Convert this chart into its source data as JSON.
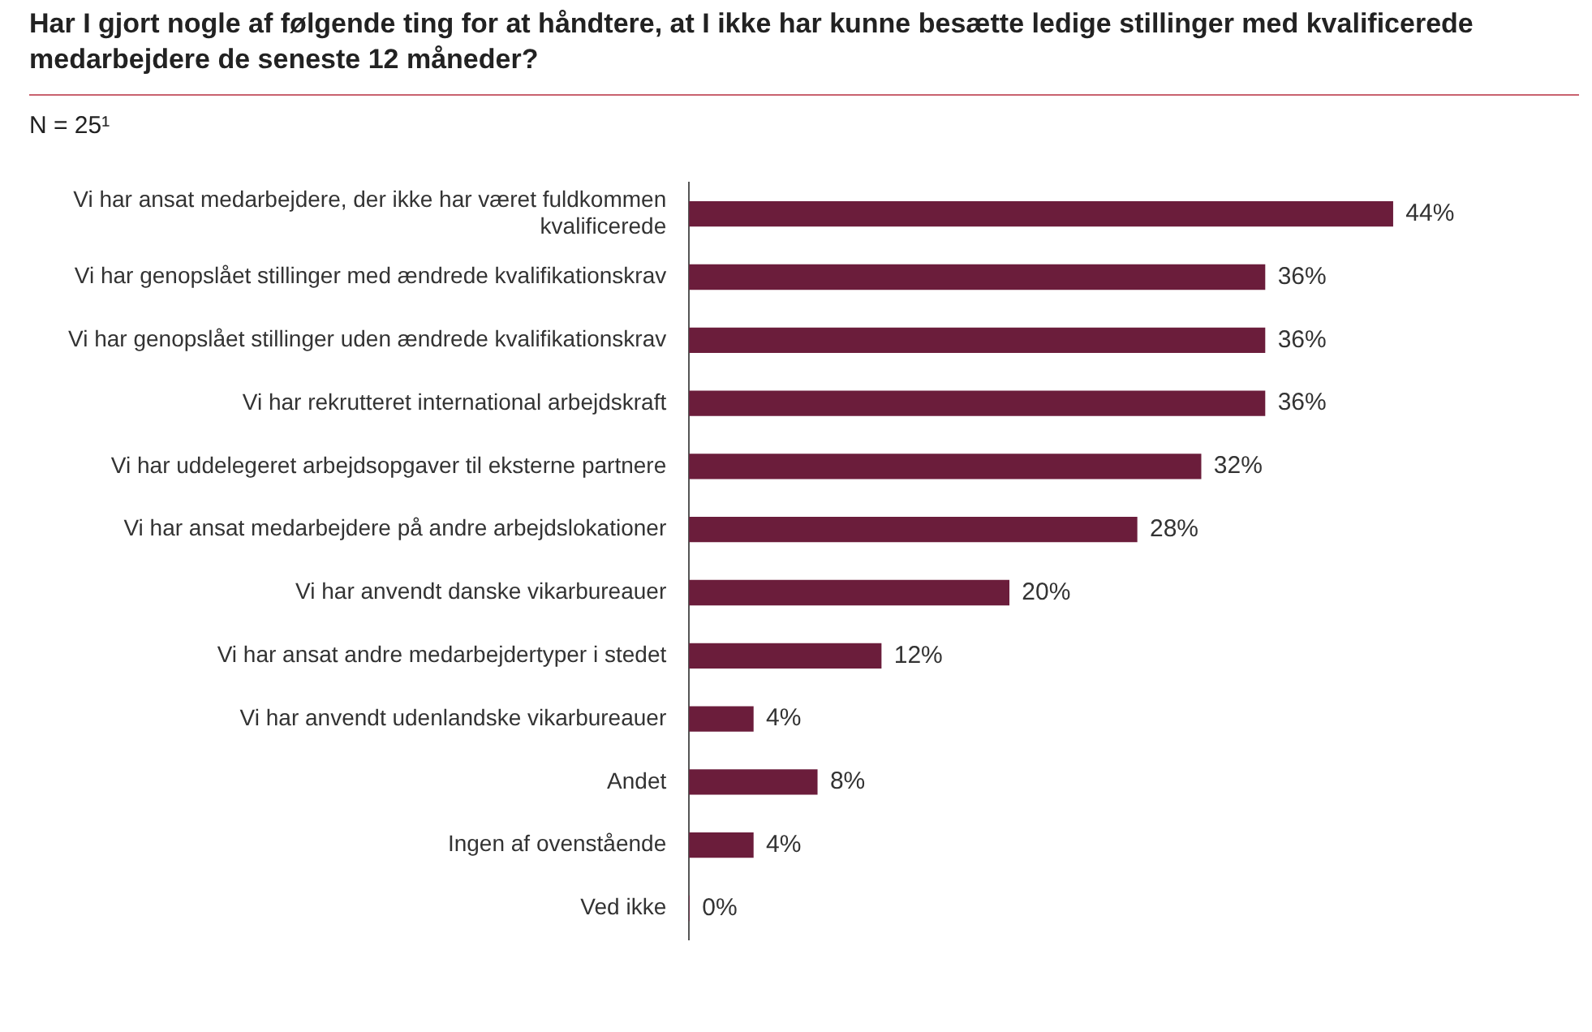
{
  "chart_data": {
    "type": "bar",
    "orientation": "horizontal",
    "title": "Har I gjort nogle af følgende ting for at håndtere, at I ikke har kunne besætte ledige stillinger med kvalificerede medarbejdere de seneste 12 måneder?",
    "subtitle": "N = 25¹",
    "categories": [
      "Vi har ansat medarbejdere, der ikke har været fuldkommen kvalificerede",
      "Vi har genopslået stillinger med ændrede kvalifikationskrav",
      "Vi har genopslået stillinger uden ændrede kvalifikationskrav",
      "Vi har rekrutteret international arbejdskraft",
      "Vi har uddelegeret arbejdsopgaver til eksterne partnere",
      "Vi har ansat medarbejdere på andre arbejdslokationer",
      "Vi har anvendt danske vikarbureauer",
      "Vi har ansat andre medarbejdertyper i stedet",
      "Vi har anvendt udenlandske vikarbureauer",
      "Andet",
      "Ingen af ovenstående",
      "Ved ikke"
    ],
    "values": [
      44,
      36,
      36,
      36,
      32,
      28,
      20,
      12,
      4,
      8,
      4,
      0
    ],
    "value_labels": [
      "44%",
      "36%",
      "36%",
      "36%",
      "32%",
      "28%",
      "20%",
      "12%",
      "4%",
      "8%",
      "4%",
      "0%"
    ],
    "color": "#6b1d3b",
    "grid": false,
    "legend": false,
    "tick_labels": "y"
  }
}
